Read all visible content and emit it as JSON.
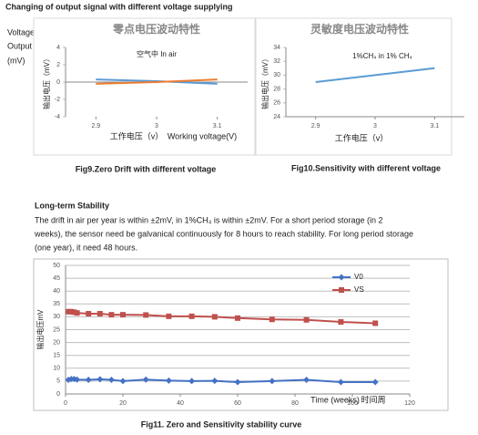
{
  "header": {
    "title": "Changing of output signal with different voltage supplying",
    "side_label": [
      "Voltage",
      "Output",
      "(mV)"
    ]
  },
  "chart_data": [
    {
      "type": "line",
      "title": "零点电压波动特性",
      "annotation": "空气中 In air",
      "y_label": "输出电压（mV）",
      "x_label": [
        "工作电压（v）",
        "Working voltage(V)"
      ],
      "x": [
        2.9,
        3.0,
        3.1
      ],
      "xlim": [
        2.85,
        3.15
      ],
      "xticks": [
        2.9,
        3,
        3.1
      ],
      "ylim": [
        -4,
        4
      ],
      "yticks": [
        -4,
        -2,
        0,
        2,
        4
      ],
      "grid": false,
      "legend": false,
      "series": [
        {
          "color": "#5b9bd5",
          "values": [
            0.3,
            0.1,
            -0.2
          ]
        },
        {
          "color": "#ed7d31",
          "values": [
            -0.2,
            0,
            0.3
          ]
        }
      ]
    },
    {
      "type": "line",
      "title": "灵敏度电压波动特性",
      "annotation": "1%CH₄ in 1% CH₄",
      "y_label": "输出电压（mV）",
      "x_label": [
        "工作电压（v）"
      ],
      "x": [
        2.9,
        3.1
      ],
      "xlim": [
        2.85,
        3.15
      ],
      "xticks": [
        2.9,
        3,
        3.1
      ],
      "ylim": [
        24,
        34
      ],
      "yticks": [
        24,
        26,
        28,
        30,
        32,
        34
      ],
      "grid": false,
      "legend": false,
      "series": [
        {
          "color": "#5b9bd5",
          "values": [
            29,
            31
          ]
        }
      ]
    },
    {
      "type": "line",
      "y_label": "输出电压mV",
      "x_label": [
        "Time (weeks)",
        "时间周"
      ],
      "x": [
        1,
        2,
        3,
        4,
        8,
        12,
        16,
        20,
        28,
        36,
        44,
        52,
        60,
        72,
        84,
        96,
        108
      ],
      "xlim": [
        0,
        120
      ],
      "xticks": [
        0,
        20,
        40,
        60,
        80,
        100,
        120
      ],
      "ylim": [
        0,
        50
      ],
      "yticks": [
        0,
        5,
        10,
        15,
        20,
        25,
        30,
        35,
        40,
        45,
        50
      ],
      "grid": true,
      "legend": true,
      "series": [
        {
          "name": "V0",
          "color": "#4472c4",
          "marker": "diamond",
          "values": [
            5.5,
            5.8,
            5.8,
            5.6,
            5.5,
            5.7,
            5.5,
            5,
            5.6,
            5.2,
            5,
            5.1,
            4.6,
            5,
            5.5,
            4.6,
            4.6
          ]
        },
        {
          "name": "VS",
          "color": "#c0504d",
          "marker": "square",
          "values": [
            32,
            32,
            31.8,
            31.5,
            31.2,
            31.2,
            30.8,
            30.8,
            30.7,
            30.2,
            30.2,
            30,
            29.5,
            29,
            28.8,
            28,
            27.5
          ]
        }
      ]
    }
  ],
  "captions": [
    "Fig9.Zero Drift with different voltage",
    "Fig10.Sensitivity with different voltage",
    "Fig11. Zero and Sensitivity stability curve"
  ],
  "section": {
    "title": "Long-term Stability",
    "paragraph": [
      "The drift in air per year is within ±2mV, in 1%CH₄ is within ±2mV. For a short period storage (in 2",
      "weeks), the sensor need be galvanical continuously for 8 hours to reach stability. For long period storage",
      "(one year), it need 48 hours."
    ]
  }
}
